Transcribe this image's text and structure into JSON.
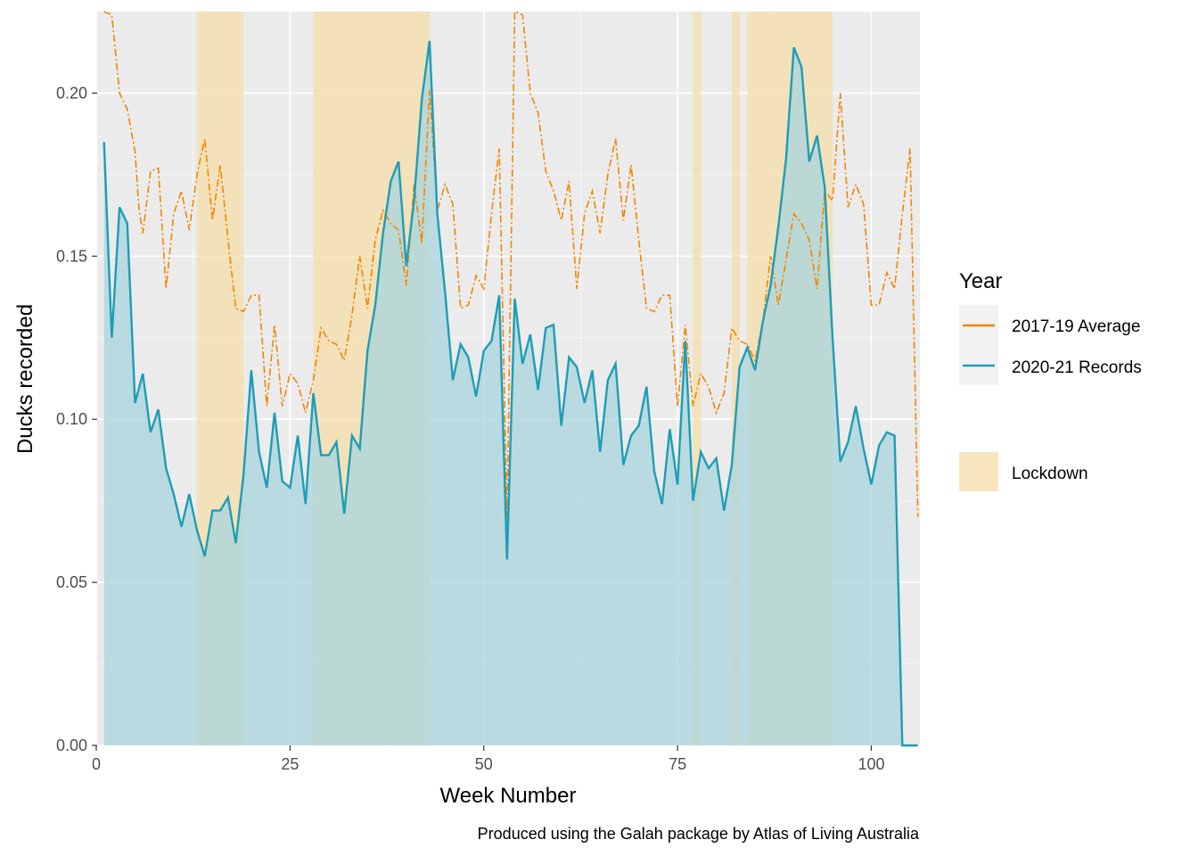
{
  "chart_data": {
    "type": "line",
    "xlabel": "Week Number",
    "ylabel": "Ducks recorded",
    "xlim": [
      0,
      106
    ],
    "ylim": [
      0,
      0.225
    ],
    "x_ticks": [
      0,
      25,
      50,
      75,
      100
    ],
    "x_tick_labels": [
      "0",
      "25",
      "50",
      "75",
      "100"
    ],
    "y_ticks": [
      0,
      0.05,
      0.1,
      0.15,
      0.2
    ],
    "y_tick_labels": [
      "0.00",
      "0.05",
      "0.10",
      "0.15",
      "0.20"
    ],
    "grid": true,
    "caption": "Produced using the Galah package by Atlas of Living Australia",
    "legend": {
      "placement": "right",
      "title": "Year",
      "entries": [
        {
          "label": "2017-19 Average",
          "color": "#F28500"
        },
        {
          "label": "2020-21 Records",
          "color": "#1E9DB4"
        }
      ],
      "lockdown_label": "Lockdown"
    },
    "lockdown_periods": [
      [
        13,
        19
      ],
      [
        28,
        43
      ],
      [
        77,
        78
      ],
      [
        82,
        83
      ],
      [
        84,
        95
      ]
    ],
    "colors": {
      "average_line": "#F28500",
      "records_line": "#1E9DB4",
      "records_fill": "#A8D4DE",
      "lockdown": "#F5DEA8",
      "panel": "#EBEBEB",
      "grid": "#FFFFFF"
    },
    "series": [
      {
        "name": "2017-19 Average",
        "style": "dashed",
        "x": [
          1,
          2,
          3,
          4,
          5,
          5.5,
          6,
          7,
          8,
          9,
          10,
          11,
          12,
          13,
          14,
          15,
          16,
          17,
          18,
          19,
          20,
          21,
          22,
          23,
          24,
          25,
          26,
          27,
          28,
          29,
          30,
          31,
          32,
          33,
          34,
          35,
          36,
          37,
          38,
          39,
          40,
          41,
          42,
          43,
          44,
          45,
          46,
          47,
          48,
          49,
          50,
          51,
          52,
          53,
          54,
          55,
          56,
          57,
          58,
          59,
          60,
          61,
          62,
          63,
          64,
          65,
          66,
          67,
          68,
          69,
          70,
          71,
          72,
          73,
          74,
          75,
          76,
          77,
          78,
          79,
          80,
          81,
          82,
          83,
          84,
          85,
          86,
          87,
          88,
          89,
          90,
          91,
          92,
          93,
          94,
          95,
          96,
          97,
          98,
          99,
          100,
          101,
          102,
          103,
          104,
          105,
          106
        ],
        "values": [
          0.225,
          0.224,
          0.2,
          0.195,
          0.182,
          0.165,
          0.157,
          0.176,
          0.177,
          0.14,
          0.163,
          0.17,
          0.158,
          0.175,
          0.186,
          0.161,
          0.178,
          0.155,
          0.134,
          0.133,
          0.138,
          0.138,
          0.104,
          0.129,
          0.104,
          0.114,
          0.111,
          0.102,
          0.112,
          0.128,
          0.124,
          0.123,
          0.118,
          0.132,
          0.15,
          0.134,
          0.155,
          0.164,
          0.16,
          0.158,
          0.141,
          0.172,
          0.154,
          0.201,
          0.164,
          0.172,
          0.166,
          0.134,
          0.135,
          0.144,
          0.14,
          0.163,
          0.183,
          0.07,
          0.225,
          0.224,
          0.2,
          0.194,
          0.176,
          0.17,
          0.161,
          0.173,
          0.14,
          0.163,
          0.17,
          0.157,
          0.175,
          0.186,
          0.161,
          0.178,
          0.155,
          0.134,
          0.133,
          0.138,
          0.138,
          0.104,
          0.129,
          0.104,
          0.114,
          0.11,
          0.102,
          0.108,
          0.128,
          0.124,
          0.123,
          0.118,
          0.13,
          0.15,
          0.135,
          0.149,
          0.163,
          0.16,
          0.155,
          0.14,
          0.17,
          0.167,
          0.2,
          0.165,
          0.172,
          0.166,
          0.135,
          0.135,
          0.145,
          0.14,
          0.163,
          0.183,
          0.07
        ]
      },
      {
        "name": "2020-21 Records",
        "style": "solid",
        "x": [
          1,
          2,
          3,
          4,
          5,
          6,
          7,
          8,
          9,
          10,
          11,
          12,
          13,
          14,
          15,
          16,
          17,
          18,
          19,
          20,
          21,
          22,
          23,
          24,
          25,
          26,
          27,
          28,
          29,
          30,
          31,
          32,
          33,
          34,
          35,
          36,
          37,
          38,
          39,
          40,
          41,
          42,
          43,
          44,
          45,
          46,
          47,
          48,
          49,
          50,
          51,
          52,
          53,
          54,
          55,
          56,
          57,
          58,
          59,
          60,
          61,
          62,
          63,
          64,
          65,
          66,
          67,
          68,
          69,
          70,
          71,
          72,
          73,
          74,
          75,
          76,
          77,
          78,
          79,
          80,
          81,
          82,
          83,
          84,
          85,
          86,
          87,
          88,
          89,
          90,
          91,
          92,
          93,
          94,
          95,
          96,
          97,
          98,
          99,
          100,
          101,
          102,
          103,
          104,
          105,
          106
        ],
        "values": [
          0.185,
          0.125,
          0.165,
          0.16,
          0.105,
          0.114,
          0.096,
          0.103,
          0.085,
          0.077,
          0.067,
          0.077,
          0.066,
          0.058,
          0.072,
          0.072,
          0.076,
          0.062,
          0.083,
          0.115,
          0.09,
          0.079,
          0.102,
          0.081,
          0.079,
          0.095,
          0.074,
          0.108,
          0.089,
          0.089,
          0.093,
          0.071,
          0.095,
          0.091,
          0.121,
          0.135,
          0.157,
          0.173,
          0.179,
          0.147,
          0.167,
          0.198,
          0.216,
          0.163,
          0.139,
          0.112,
          0.123,
          0.119,
          0.107,
          0.121,
          0.124,
          0.138,
          0.057,
          0.137,
          0.117,
          0.126,
          0.109,
          0.128,
          0.129,
          0.098,
          0.119,
          0.116,
          0.105,
          0.115,
          0.09,
          0.112,
          0.117,
          0.086,
          0.095,
          0.098,
          0.11,
          0.084,
          0.074,
          0.097,
          0.08,
          0.124,
          0.075,
          0.09,
          0.085,
          0.088,
          0.072,
          0.086,
          0.116,
          0.122,
          0.115,
          0.13,
          0.141,
          0.159,
          0.18,
          0.214,
          0.208,
          0.179,
          0.187,
          0.171,
          0.125,
          0.087,
          0.093,
          0.104,
          0.091,
          0.08,
          0.092,
          0.096,
          0.095,
          0.0,
          0.0,
          0.0
        ]
      }
    ]
  }
}
